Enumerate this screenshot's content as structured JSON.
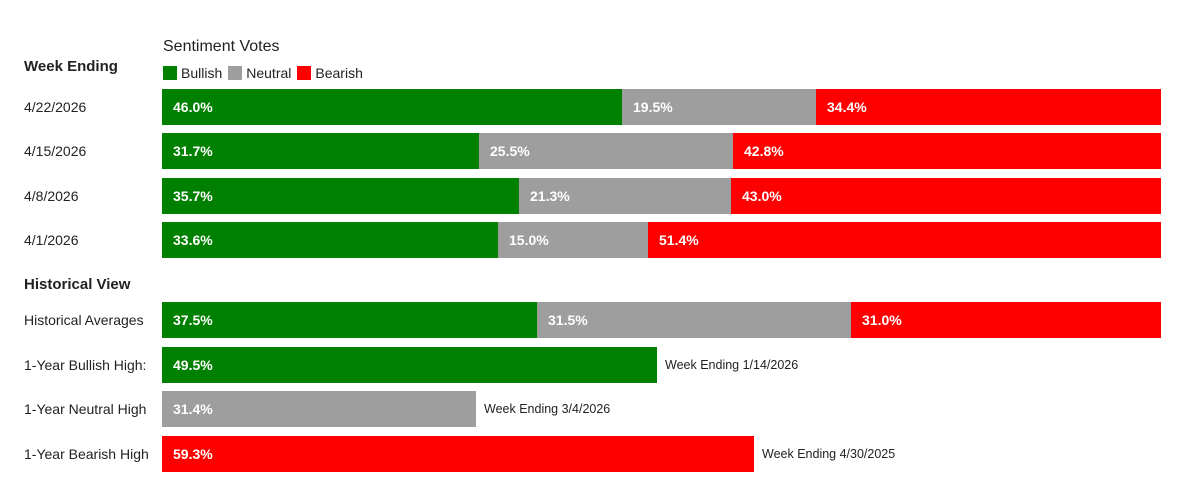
{
  "colors": {
    "bullish": "#008000",
    "neutral": "#9e9e9e",
    "bearish": "#ff0000"
  },
  "legend_title": "Sentiment Votes",
  "legend": [
    {
      "label": "Bullish",
      "key": "bullish"
    },
    {
      "label": "Neutral",
      "key": "neutral"
    },
    {
      "label": "Bearish",
      "key": "bearish"
    }
  ],
  "sections": {
    "weekly_header": "Week Ending",
    "historical_header": "Historical View"
  },
  "chart_data": {
    "type": "bar",
    "stacked": true,
    "orientation": "horizontal",
    "title": "Sentiment Votes",
    "weekly": [
      {
        "label": "4/22/2026",
        "bullish": 46.0,
        "neutral": 19.5,
        "bearish": 34.4,
        "bullish_label": "46.0%",
        "neutral_label": "19.5%",
        "bearish_label": "34.4%"
      },
      {
        "label": "4/15/2026",
        "bullish": 31.7,
        "neutral": 25.5,
        "bearish": 42.8,
        "bullish_label": "31.7%",
        "neutral_label": "25.5%",
        "bearish_label": "42.8%"
      },
      {
        "label": "4/8/2026",
        "bullish": 35.7,
        "neutral": 21.3,
        "bearish": 43.0,
        "bullish_label": "35.7%",
        "neutral_label": "21.3%",
        "bearish_label": "43.0%"
      },
      {
        "label": "4/1/2026",
        "bullish": 33.6,
        "neutral": 15.0,
        "bearish": 51.4,
        "bullish_label": "33.6%",
        "neutral_label": "15.0%",
        "bearish_label": "51.4%"
      }
    ],
    "historical_averages": {
      "label": "Historical Averages",
      "bullish": 37.5,
      "neutral": 31.5,
      "bearish": 31.0,
      "bullish_label": "37.5%",
      "neutral_label": "31.5%",
      "bearish_label": "31.0%"
    },
    "highs": [
      {
        "label": "1-Year Bullish High:",
        "key": "bullish",
        "value": 49.5,
        "value_label": "49.5%",
        "note": "Week Ending 1/14/2026"
      },
      {
        "label": "1-Year Neutral High",
        "key": "neutral",
        "value": 31.4,
        "value_label": "31.4%",
        "note": "Week Ending 3/4/2026"
      },
      {
        "label": "1-Year Bearish High",
        "key": "bearish",
        "value": 59.3,
        "value_label": "59.3%",
        "note": "Week Ending 4/30/2025"
      }
    ]
  }
}
